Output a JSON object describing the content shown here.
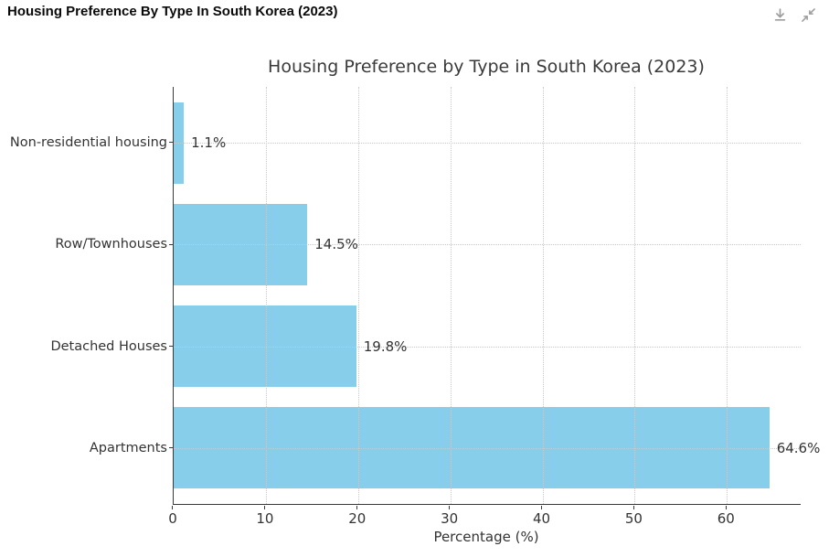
{
  "header": {
    "title": "Housing Preference By Type In South Korea (2023)",
    "icons": [
      {
        "name": "download-icon"
      },
      {
        "name": "collapse-icon"
      }
    ],
    "icon_color": "#9e9e9e"
  },
  "chart_data": {
    "type": "bar",
    "orientation": "horizontal",
    "title": "Housing Preference by Type in South Korea (2023)",
    "categories": [
      "Non-residential housing",
      "Row/Townhouses",
      "Detached Houses",
      "Apartments"
    ],
    "values": [
      1.1,
      14.5,
      19.8,
      64.6
    ],
    "value_labels": [
      "1.1%",
      "14.5%",
      "19.8%",
      "64.6%"
    ],
    "xlabel": "Percentage (%)",
    "ylabel": "",
    "x_ticks": [
      0,
      10,
      20,
      30,
      40,
      50,
      60
    ],
    "xlim": [
      0,
      68
    ],
    "bar_color": "#87CEEB",
    "axis_color": "#3a3a3a",
    "grid_color": "#c9c9c9",
    "text_color": "#333333",
    "grid": true,
    "grid_style": "dotted",
    "legend_position": "none"
  }
}
